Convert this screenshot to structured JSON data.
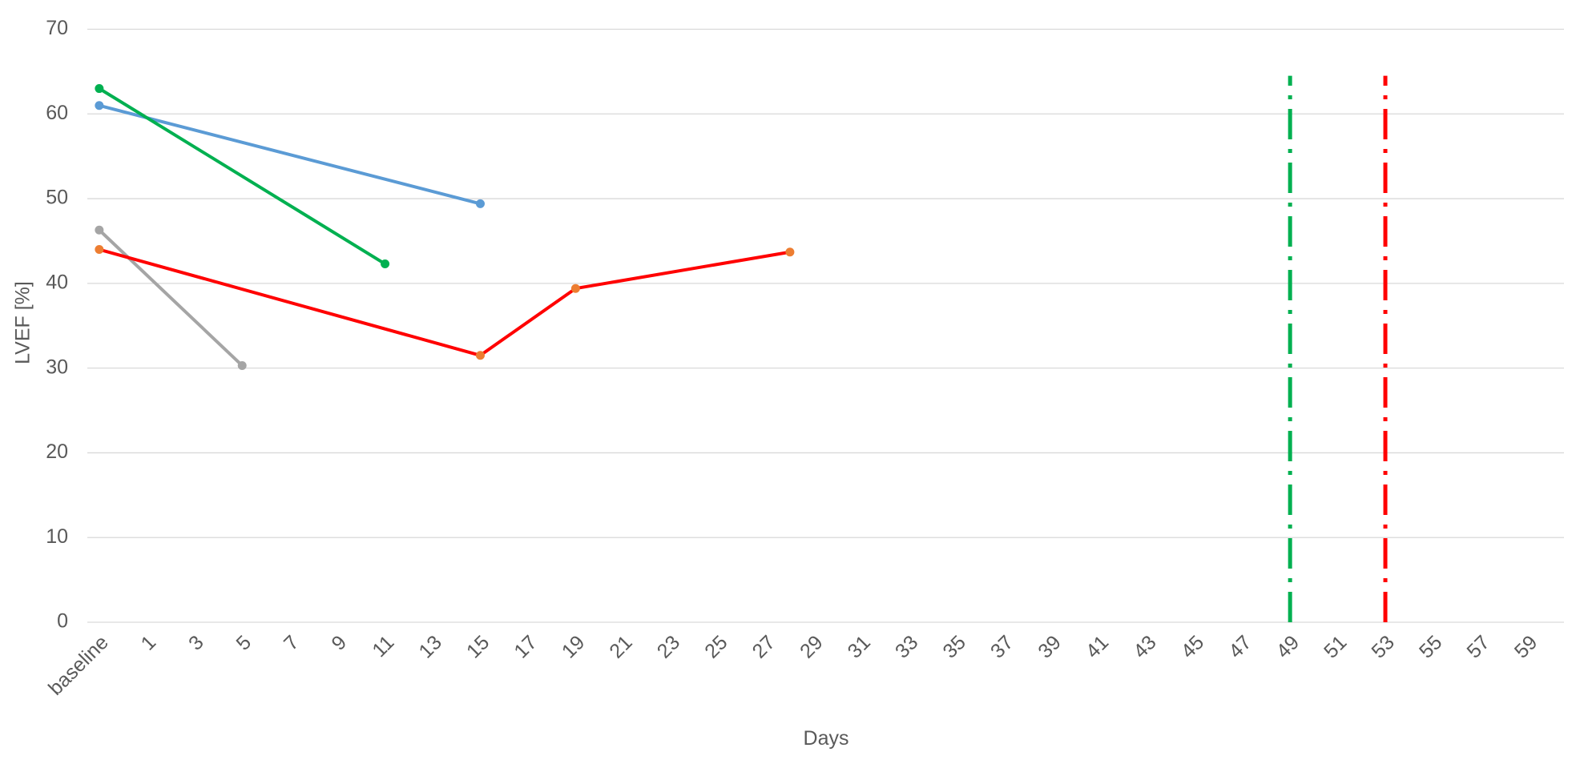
{
  "chart_data": {
    "type": "line",
    "x_label": "Days",
    "y_label": "LVEF [%]",
    "categories": [
      "baseline",
      null,
      "1",
      null,
      "3",
      null,
      "5",
      null,
      "7",
      null,
      "9",
      null,
      "11",
      null,
      "13",
      null,
      "15",
      null,
      "17",
      null,
      "19",
      null,
      "21",
      null,
      "23",
      null,
      "25",
      null,
      "27",
      null,
      "29",
      null,
      "31",
      null,
      "33",
      null,
      "35",
      null,
      "37",
      null,
      "39",
      null,
      "41",
      null,
      "43",
      null,
      "45",
      null,
      "47",
      null,
      "49",
      null,
      "51",
      null,
      "53",
      null,
      "55",
      null,
      "57",
      null,
      "59",
      null
    ],
    "span_gaps": true,
    "series": [
      {
        "color": "#5b9bd5",
        "marker_color": "#5b9bd5",
        "values": [
          61,
          null,
          null,
          null,
          null,
          null,
          null,
          null,
          null,
          null,
          null,
          null,
          null,
          null,
          null,
          null,
          49.4,
          null,
          null,
          null,
          null,
          null,
          null,
          null,
          null,
          null,
          null,
          null,
          null,
          null,
          null,
          null,
          null,
          null,
          null,
          null,
          null,
          null,
          null,
          null,
          null,
          null,
          null,
          null,
          null,
          null,
          null,
          null,
          null,
          null,
          null,
          null,
          null,
          null,
          null,
          null,
          null,
          null,
          null,
          null,
          null,
          null
        ]
      },
      {
        "color": "#00b050",
        "marker_color": "#00b050",
        "values": [
          63,
          null,
          null,
          null,
          null,
          null,
          null,
          null,
          null,
          null,
          null,
          null,
          42.3,
          null,
          null,
          null,
          null,
          null,
          null,
          null,
          null,
          null,
          null,
          null,
          null,
          null,
          null,
          null,
          null,
          null,
          null,
          null,
          null,
          null,
          null,
          null,
          null,
          null,
          null,
          null,
          null,
          null,
          null,
          null,
          null,
          null,
          null,
          null,
          null,
          null,
          null,
          null,
          null,
          null,
          null,
          null,
          null,
          null,
          null,
          null,
          null,
          null
        ]
      },
      {
        "color": "#a5a5a5",
        "marker_color": "#a5a5a5",
        "values": [
          46.3,
          null,
          null,
          null,
          null,
          null,
          30.3,
          null,
          null,
          null,
          null,
          null,
          null,
          null,
          null,
          null,
          null,
          null,
          null,
          null,
          null,
          null,
          null,
          null,
          null,
          null,
          null,
          null,
          null,
          null,
          null,
          null,
          null,
          null,
          null,
          null,
          null,
          null,
          null,
          null,
          null,
          null,
          null,
          null,
          null,
          null,
          null,
          null,
          null,
          null,
          null,
          null,
          null,
          null,
          null,
          null,
          null,
          null,
          null,
          null,
          null,
          null
        ]
      },
      {
        "color": "#ff0000",
        "marker_color": "#ed7d31",
        "values": [
          44,
          null,
          null,
          null,
          null,
          null,
          null,
          null,
          null,
          null,
          null,
          null,
          null,
          null,
          null,
          null,
          31.5,
          null,
          null,
          null,
          39.4,
          null,
          null,
          null,
          null,
          null,
          null,
          null,
          null,
          43.7,
          null,
          null,
          null,
          null,
          null,
          null,
          null,
          null,
          null,
          null,
          null,
          null,
          null,
          null,
          null,
          null,
          null,
          null,
          null,
          null,
          null,
          null,
          null,
          null,
          null,
          null,
          null,
          null,
          null,
          null,
          null,
          null
        ]
      }
    ],
    "reference_lines": [
      {
        "category": "49",
        "color": "#00b050",
        "y": [
          0,
          64.5
        ]
      },
      {
        "category": "53",
        "color": "#ff0000",
        "y": [
          0,
          64.5
        ]
      }
    ],
    "ylim": [
      0,
      70
    ],
    "yticks": [
      0,
      10,
      20,
      30,
      40,
      50,
      60,
      70
    ],
    "grid": true
  }
}
